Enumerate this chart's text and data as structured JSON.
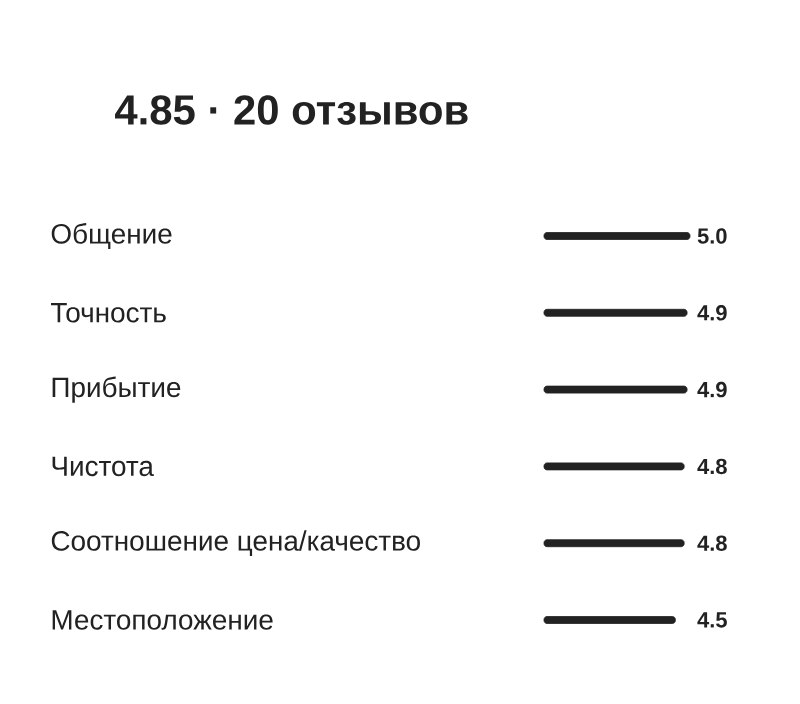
{
  "chart_data": {
    "type": "bar",
    "orientation": "horizontal",
    "title": "4.85 · 20 отзывов",
    "categories": [
      "Общение",
      "Точность",
      "Прибытие",
      "Чистота",
      "Соотношение цена/качество",
      "Местоположение"
    ],
    "values": [
      5.0,
      4.9,
      4.9,
      4.8,
      4.8,
      4.5
    ],
    "value_labels": [
      "5.0",
      "4.9",
      "4.9",
      "4.8",
      "4.8",
      "4.5"
    ],
    "color": "#222222",
    "xlim": [
      0,
      5
    ],
    "tick_labels": "y"
  }
}
